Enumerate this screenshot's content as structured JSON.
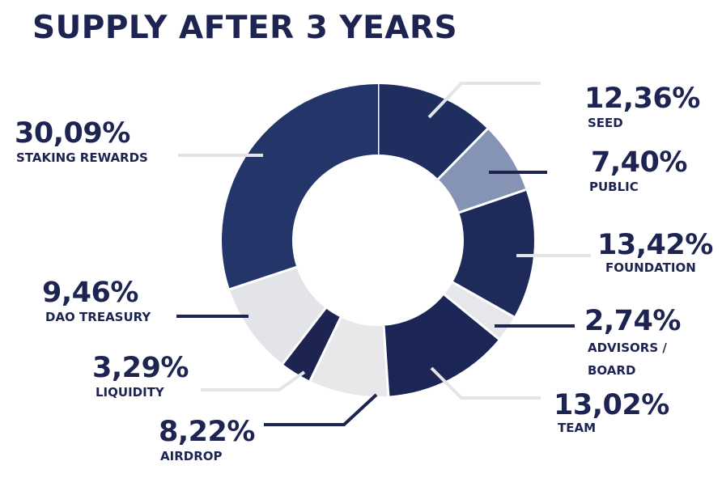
{
  "chart_data": {
    "type": "pie",
    "title": "SUPPLY AFTER 3 YEARS",
    "slices": [
      {
        "label": "SEED",
        "value": 12.36,
        "value_label": "12,36%",
        "color": "#1f2e5e"
      },
      {
        "label": "PUBLIC",
        "value": 7.4,
        "value_label": "7,40%",
        "color": "#8593b5"
      },
      {
        "label": "FOUNDATION",
        "value": 13.42,
        "value_label": "13,42%",
        "color": "#1e2b5a"
      },
      {
        "label": "ADVISORS / BOARD",
        "value": 2.74,
        "value_label": "2,74%",
        "color": "#e6e7ea"
      },
      {
        "label": "TEAM",
        "value": 13.02,
        "value_label": "13,02%",
        "color": "#1b2656"
      },
      {
        "label": "AIRDROP",
        "value": 8.22,
        "value_label": "8,22%",
        "color": "#e8e8ea"
      },
      {
        "label": "LIQUIDITY",
        "value": 3.29,
        "value_label": "3,29%",
        "color": "#1e2452"
      },
      {
        "label": "DAO TREASURY",
        "value": 9.46,
        "value_label": "9,46%",
        "color": "#e3e4e7"
      },
      {
        "label": "STAKING REWARDS",
        "value": 30.09,
        "value_label": "30,09%",
        "color": "#24356a"
      }
    ]
  }
}
